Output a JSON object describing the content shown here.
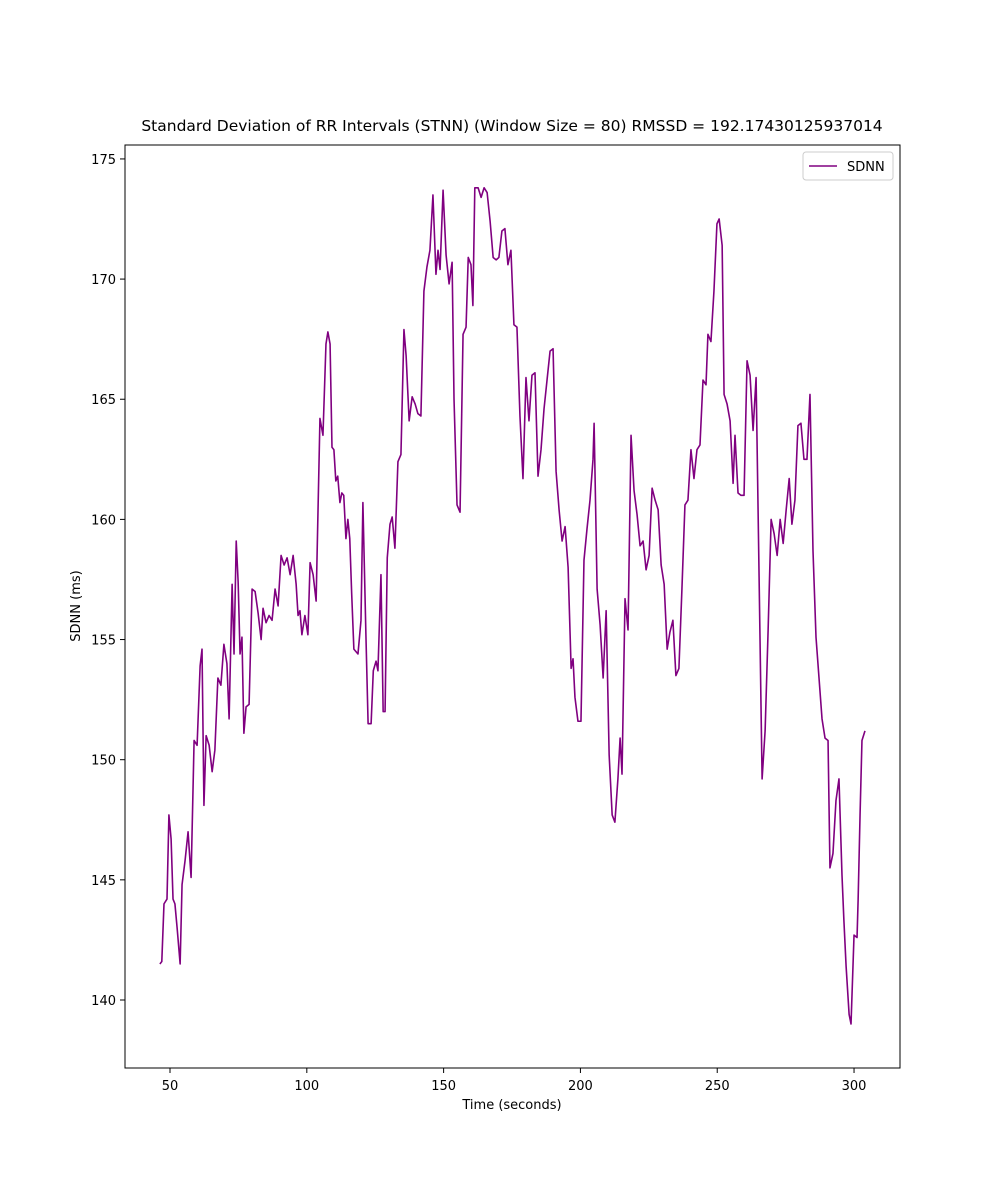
{
  "chart_data": {
    "type": "line",
    "title": "Standard Deviation of RR Intervals (STNN) (Window Size = 80) RMSSD = 192.17430125937014",
    "xlabel": "Time (seconds)",
    "ylabel": "SDNN (ms)",
    "xlim": [
      33.55,
      316.8
    ],
    "ylim": [
      137.17,
      175.58
    ],
    "xticks": [
      50,
      100,
      150,
      200,
      250,
      300
    ],
    "yticks": [
      140,
      145,
      150,
      155,
      160,
      165,
      170,
      175
    ],
    "legend": "upper right",
    "grid": false,
    "x": [
      46.3,
      47,
      47.8,
      48.9,
      49.6,
      50.4,
      51.1,
      51.8,
      52.6,
      53.7,
      54.4,
      55.5,
      56.6,
      57.7,
      58.8,
      59.9,
      61.0,
      61.7,
      62.4,
      63.2,
      64.3,
      65.4,
      66.4,
      67.5,
      68.6,
      69.7,
      70.8,
      71.6,
      72.7,
      73.4,
      74.2,
      74.9,
      75.6,
      76.3,
      77.0,
      77.8,
      78.9,
      80.0,
      81.1,
      82.2,
      83.3,
      84.0,
      85.1,
      86.2,
      87.3,
      88.4,
      89.5,
      90.6,
      91.7,
      92.8,
      93.9,
      95.0,
      96.1,
      96.8,
      97.5,
      98.2,
      99.3,
      100.4,
      101.2,
      102.3,
      103.4,
      104.1,
      104.8,
      105.9,
      107.0,
      107.7,
      108.5,
      109.2,
      109.9,
      110.6,
      111.3,
      112.1,
      112.8,
      113.5,
      114.3,
      115.0,
      115.7,
      116.4,
      117.2,
      118.7,
      119.8,
      120.5,
      121.6,
      122.4,
      123.5,
      124.3,
      125.3,
      126.0,
      127.1,
      127.9,
      128.6,
      129.4,
      130.4,
      131.2,
      132.2,
      133.3,
      134.4,
      135.5,
      136.3,
      137.4,
      138.5,
      139.6,
      140.6,
      141.7,
      142.8,
      143.9,
      145.0,
      146.1,
      147.2,
      147.95,
      148.7,
      149.8,
      150.9,
      152.0,
      153.1,
      153.8,
      154.9,
      156.0,
      157.1,
      158.2,
      159.0,
      160.0,
      160.7,
      161.4,
      162.6,
      163.7,
      164.8,
      165.9,
      167.0,
      168.1,
      169.2,
      170.2,
      171.3,
      172.4,
      173.5,
      174.6,
      175.7,
      176.8,
      177.9,
      179.0,
      180.1,
      181.2,
      182.3,
      183.4,
      184.5,
      185.6,
      186.7,
      187.8,
      188.9,
      190.0,
      191.1,
      192.2,
      193.3,
      194.4,
      195.5,
      196.6,
      197.3,
      198.0,
      199.1,
      200.2,
      201.3,
      202.4,
      203.5,
      204.6,
      205.0,
      206.1,
      207.2,
      208.3,
      209.4,
      210.5,
      211.6,
      212.6,
      213.7,
      214.5,
      215.2,
      216.3,
      217.4,
      218.5,
      219.6,
      220.7,
      221.8,
      222.9,
      224.0,
      225.1,
      226.2,
      227.3,
      228.4,
      229.5,
      230.6,
      231.7,
      232.7,
      233.8,
      234.9,
      236.0,
      237.1,
      238.2,
      239.3,
      240.4,
      241.5,
      242.6,
      243.7,
      244.8,
      245.9,
      246.6,
      247.7,
      248.8,
      249.9,
      250.7,
      251.8,
      252.5,
      253.6,
      254.7,
      255.8,
      256.5,
      257.6,
      258.7,
      259.8,
      260.9,
      262.0,
      263.1,
      264.2,
      265.3,
      266.4,
      267.5,
      268.6,
      269.7,
      270.8,
      271.9,
      273.0,
      274.1,
      275.2,
      276.3,
      277.3,
      278.4,
      279.5,
      280.6,
      281.7,
      282.8,
      283.9,
      285.0,
      286.1,
      287.2,
      288.3,
      289.4,
      290.5,
      291.2,
      292.3,
      293.4,
      294.5,
      295.6,
      296.3,
      297.1,
      298.2,
      298.9,
      300.0,
      301.1,
      301.5,
      302.2,
      302.9,
      304.0
    ],
    "series": [
      {
        "name": "SDNN",
        "color": "purple",
        "values": [
          141.5,
          141.6,
          144.0,
          144.2,
          147.7,
          146.7,
          144.2,
          144.0,
          143.0,
          141.5,
          144.8,
          145.8,
          147.0,
          145.1,
          150.8,
          150.6,
          153.9,
          154.6,
          148.1,
          151.0,
          150.6,
          149.5,
          150.4,
          153.4,
          153.1,
          154.8,
          154.0,
          151.7,
          157.3,
          154.4,
          159.1,
          157.4,
          154.4,
          155.1,
          151.1,
          152.2,
          152.3,
          157.1,
          157.0,
          156.1,
          155.0,
          156.3,
          155.7,
          156.0,
          155.8,
          157.1,
          156.4,
          158.5,
          158.1,
          158.4,
          157.7,
          158.5,
          157.3,
          156.0,
          156.2,
          155.2,
          156.0,
          155.2,
          158.2,
          157.7,
          156.6,
          160.4,
          164.2,
          163.5,
          167.3,
          167.8,
          167.3,
          163.0,
          162.9,
          161.6,
          161.8,
          160.7,
          161.1,
          161.0,
          159.2,
          160.0,
          159.2,
          156.9,
          154.6,
          154.4,
          155.8,
          160.7,
          155.2,
          151.5,
          151.5,
          153.7,
          154.1,
          153.7,
          157.7,
          152.0,
          152.0,
          158.4,
          159.8,
          160.1,
          158.8,
          162.4,
          162.7,
          167.9,
          166.8,
          164.1,
          165.1,
          164.8,
          164.4,
          164.3,
          169.5,
          170.5,
          171.2,
          173.5,
          170.2,
          171.2,
          170.4,
          173.7,
          171.0,
          169.8,
          170.7,
          165.0,
          160.6,
          160.3,
          167.7,
          168.0,
          170.9,
          170.6,
          168.9,
          173.8,
          173.8,
          173.4,
          173.8,
          173.6,
          172.4,
          170.9,
          170.8,
          170.9,
          172.0,
          172.1,
          170.6,
          171.2,
          168.1,
          168.0,
          164.3,
          161.7,
          165.9,
          164.1,
          166.0,
          166.1,
          161.8,
          162.9,
          164.6,
          165.8,
          167.0,
          167.1,
          162.0,
          160.4,
          159.1,
          159.7,
          158.0,
          153.8,
          154.2,
          152.6,
          151.6,
          151.6,
          158.3,
          159.6,
          160.8,
          162.5,
          164.0,
          157.1,
          155.6,
          153.4,
          156.2,
          150.2,
          147.7,
          147.4,
          149.2,
          150.9,
          149.4,
          156.7,
          155.4,
          163.5,
          161.2,
          160.2,
          158.9,
          159.1,
          157.9,
          158.5,
          161.3,
          160.8,
          160.4,
          158.1,
          157.3,
          154.6,
          155.3,
          155.8,
          153.5,
          153.8,
          157.1,
          160.6,
          160.8,
          162.9,
          161.7,
          162.9,
          163.1,
          165.8,
          165.6,
          167.7,
          167.4,
          169.5,
          172.3,
          172.5,
          171.4,
          165.2,
          164.8,
          164.1,
          161.5,
          163.5,
          161.1,
          161.0,
          161.0,
          166.6,
          166.0,
          163.7,
          165.9,
          157.6,
          149.2,
          151.2,
          155.4,
          160.0,
          159.4,
          158.5,
          160.0,
          159.0,
          160.4,
          161.7,
          159.8,
          160.8,
          163.9,
          164.0,
          162.5,
          162.5,
          165.2,
          158.7,
          155.1,
          153.4,
          151.7,
          150.9,
          150.8,
          145.5,
          146.1,
          148.3,
          149.2,
          145.2,
          143.3,
          141.4,
          139.4,
          139.0,
          142.7,
          142.6,
          144.2,
          147.7,
          150.8,
          151.2
        ]
      }
    ]
  }
}
